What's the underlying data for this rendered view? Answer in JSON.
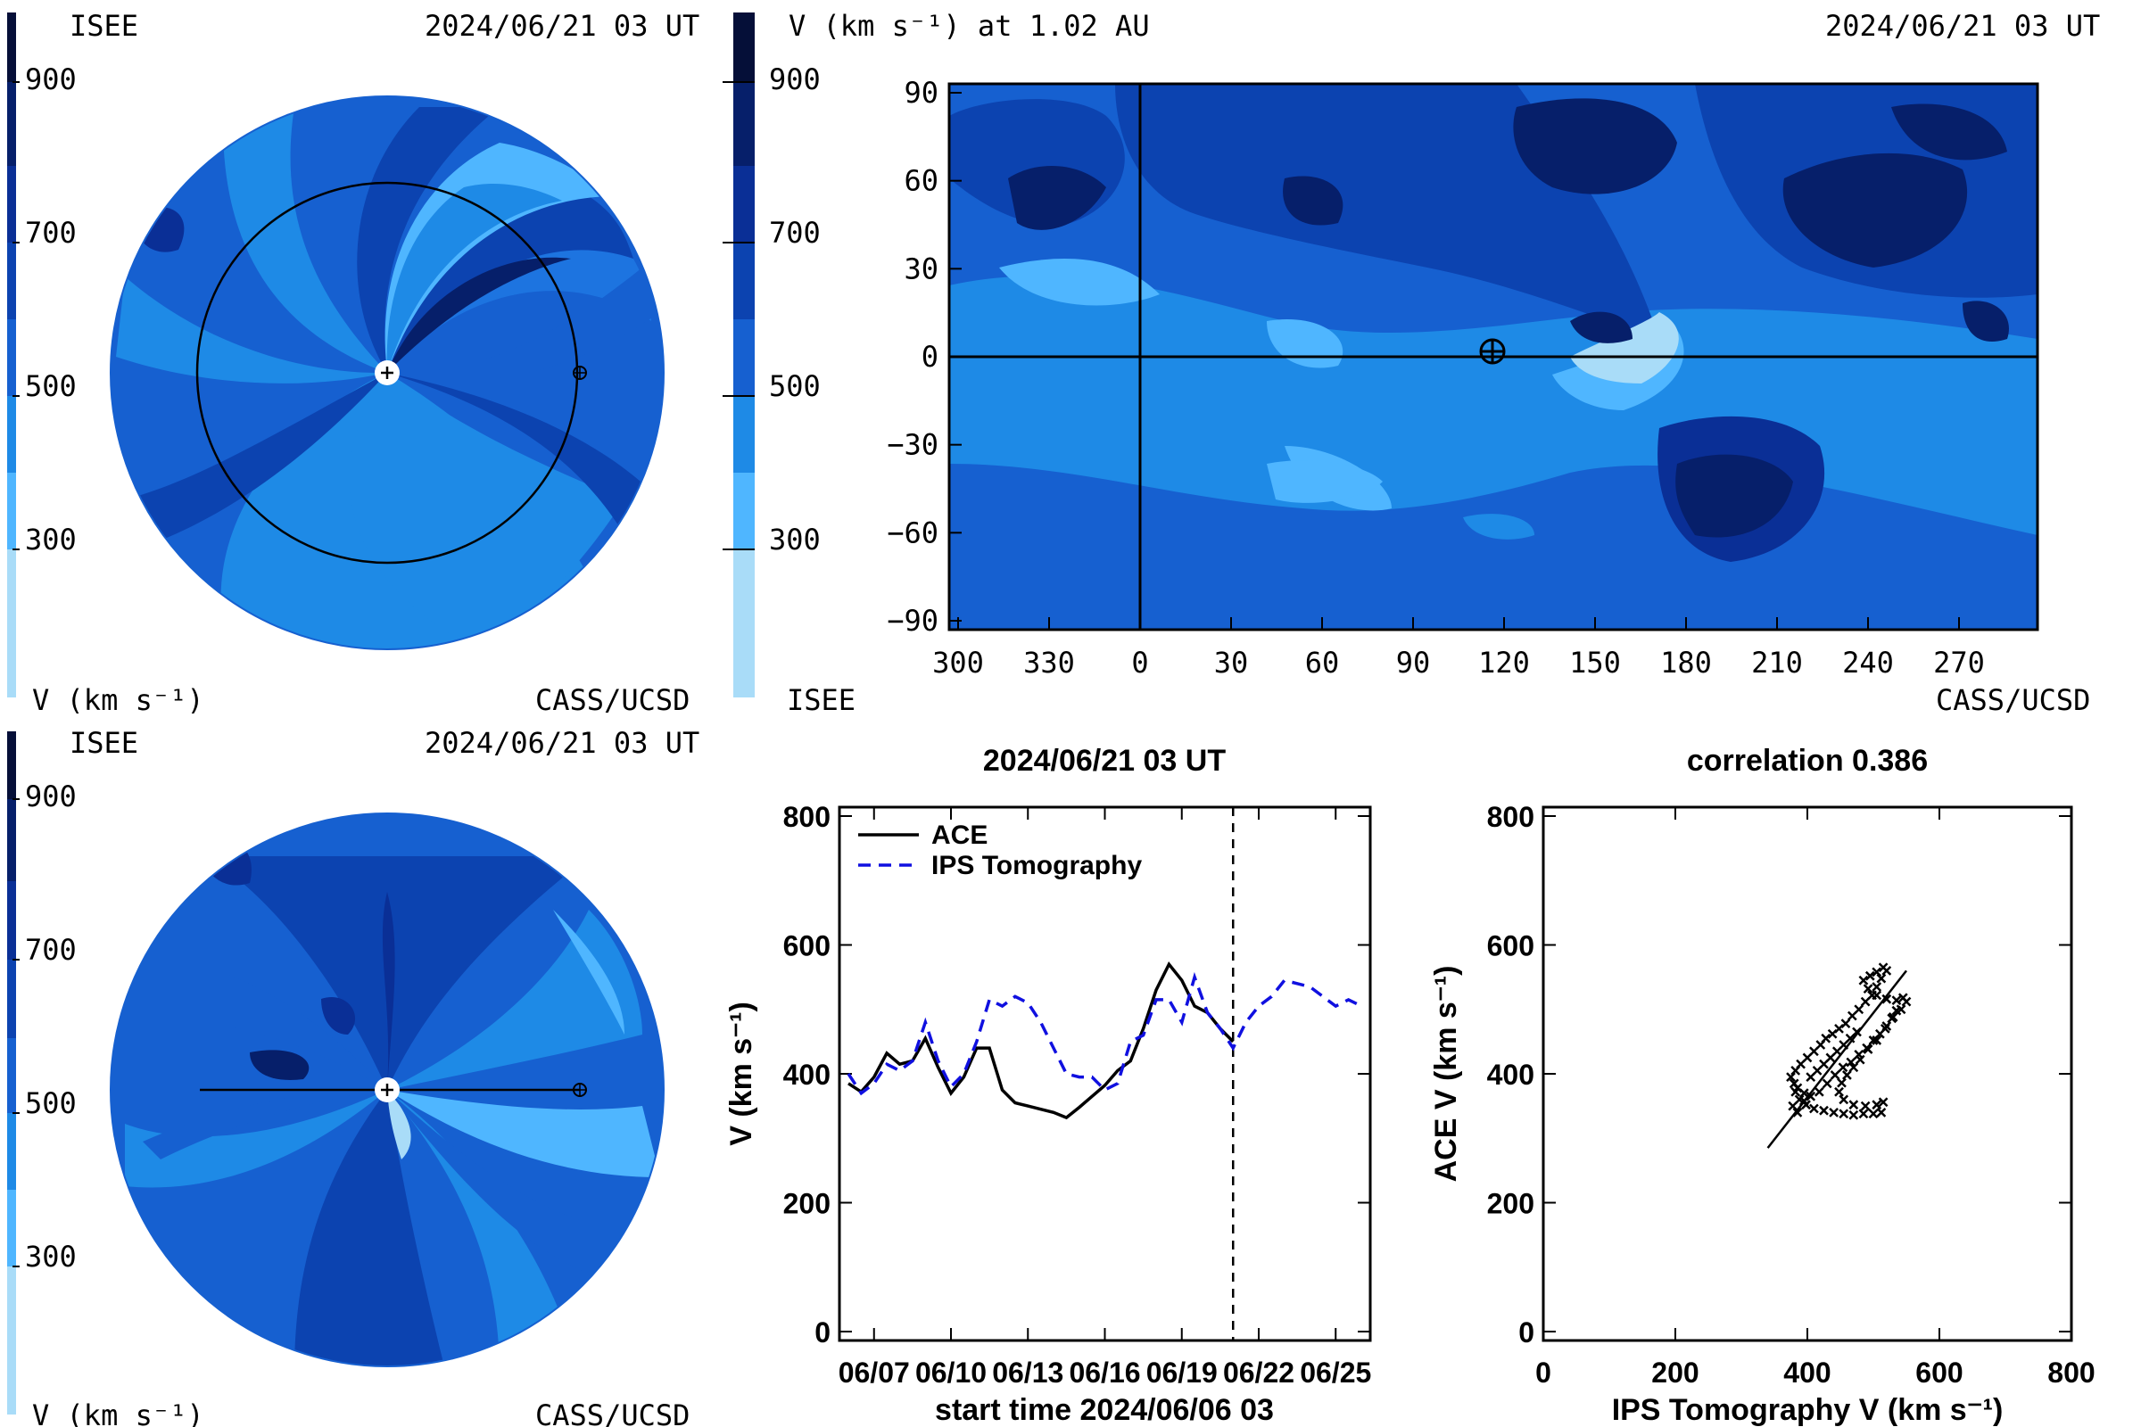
{
  "colors": {
    "v200": "#a9dcf8",
    "v300": "#4fb6ff",
    "v400": "#1e8ae6",
    "v450": "#1d74e0",
    "v500": "#1660d0",
    "v600": "#0c43b0",
    "v700": "#0a2f96",
    "v800": "#061f6a",
    "v900": "#050f38",
    "ace": "#000000",
    "ips": "#1010e0"
  },
  "colorbar": {
    "ticks": [
      "900",
      "700",
      "500",
      "300"
    ]
  },
  "panel_top_left": {
    "org": "ISEE",
    "time": "2024/06/21 03 UT",
    "unit": "V (km s⁻¹)",
    "credit": "CASS/UCSD"
  },
  "panel_bottom_left": {
    "org": "ISEE",
    "time": "2024/06/21 03 UT",
    "unit": "V (km s⁻¹)",
    "credit": "CASS/UCSD"
  },
  "panel_map": {
    "title": "V (km s⁻¹) at 1.02 AU",
    "time": "2024/06/21 03 UT",
    "org": "ISEE",
    "credit": "CASS/UCSD",
    "y_ticks": [
      "90",
      "60",
      "30",
      "0",
      "−30",
      "−60",
      "−90"
    ],
    "x_ticks": [
      "300",
      "330",
      "0",
      "30",
      "60",
      "90",
      "120",
      "150",
      "180",
      "210",
      "240",
      "270"
    ]
  },
  "chart_data": [
    {
      "type": "line",
      "title": "2024/06/21 03 UT",
      "xlabel": "start time 2024/06/06 03",
      "ylabel": "V (km s⁻¹)",
      "ylim": [
        0,
        800
      ],
      "xlim_days": [
        0,
        20
      ],
      "x_tick_labels": [
        "06/07",
        "06/10",
        "06/13",
        "06/16",
        "06/19",
        "06/22",
        "06/25"
      ],
      "y_tick_labels": [
        "0",
        "200",
        "400",
        "600",
        "800"
      ],
      "current_time_marker_day": 15,
      "legend": "top-left",
      "series": [
        {
          "name": "ACE",
          "style": "solid",
          "x": [
            0,
            0.5,
            1,
            1.5,
            2,
            2.5,
            3,
            3.5,
            4,
            4.5,
            5,
            5.5,
            6,
            6.5,
            7,
            7.5,
            8,
            8.5,
            9,
            9.5,
            10,
            10.5,
            11,
            11.5,
            12,
            12.5,
            13,
            13.5,
            14,
            14.5,
            15
          ],
          "y": [
            385,
            372,
            395,
            432,
            415,
            420,
            455,
            410,
            370,
            395,
            440,
            440,
            375,
            355,
            350,
            345,
            340,
            332,
            348,
            365,
            382,
            405,
            420,
            470,
            530,
            570,
            545,
            505,
            495,
            470,
            450
          ]
        },
        {
          "name": "IPS Tomography",
          "style": "dashed",
          "x": [
            0,
            0.5,
            1,
            1.5,
            2,
            2.5,
            3,
            3.5,
            4,
            4.5,
            5,
            5.5,
            6,
            6.5,
            7,
            7.5,
            8,
            8.5,
            9,
            9.5,
            10,
            10.5,
            11,
            11.5,
            12,
            12.5,
            13,
            13.5,
            14,
            14.5,
            15,
            15.5,
            16,
            16.5,
            17,
            17.5,
            18,
            18.5,
            19,
            19.5,
            20
          ],
          "y": [
            400,
            370,
            385,
            415,
            405,
            420,
            480,
            420,
            380,
            400,
            450,
            515,
            505,
            520,
            510,
            480,
            440,
            400,
            395,
            395,
            375,
            385,
            450,
            460,
            515,
            515,
            480,
            550,
            495,
            470,
            440,
            480,
            505,
            520,
            545,
            540,
            535,
            520,
            505,
            515,
            505
          ]
        }
      ]
    },
    {
      "type": "scatter",
      "title": "correlation 0.386",
      "xlabel": "IPS Tomography V (km s⁻¹)",
      "ylabel": "ACE V (km s⁻¹)",
      "xlim": [
        0,
        800
      ],
      "ylim": [
        0,
        800
      ],
      "x_tick_labels": [
        "0",
        "200",
        "400",
        "600",
        "800"
      ],
      "y_tick_labels": [
        "0",
        "200",
        "400",
        "600",
        "800"
      ],
      "fit_line": {
        "x": [
          340,
          550
        ],
        "y": [
          285,
          560
        ]
      },
      "points": [
        [
          375,
          395
        ],
        [
          382,
          405
        ],
        [
          390,
          415
        ],
        [
          400,
          425
        ],
        [
          410,
          435
        ],
        [
          420,
          445
        ],
        [
          428,
          455
        ],
        [
          438,
          462
        ],
        [
          448,
          470
        ],
        [
          458,
          478
        ],
        [
          468,
          490
        ],
        [
          478,
          500
        ],
        [
          488,
          512
        ],
        [
          498,
          522
        ],
        [
          505,
          535
        ],
        [
          512,
          548
        ],
        [
          520,
          560
        ],
        [
          515,
          565
        ],
        [
          505,
          558
        ],
        [
          495,
          552
        ],
        [
          485,
          545
        ],
        [
          492,
          532
        ],
        [
          505,
          522
        ],
        [
          520,
          516
        ],
        [
          535,
          514
        ],
        [
          545,
          518
        ],
        [
          550,
          512
        ],
        [
          542,
          500
        ],
        [
          530,
          488
        ],
        [
          518,
          470
        ],
        [
          505,
          452
        ],
        [
          492,
          438
        ],
        [
          480,
          422
        ],
        [
          470,
          410
        ],
        [
          460,
          398
        ],
        [
          452,
          386
        ],
        [
          448,
          372
        ],
        [
          455,
          360
        ],
        [
          470,
          352
        ],
        [
          488,
          350
        ],
        [
          505,
          352
        ],
        [
          515,
          356
        ],
        [
          512,
          340
        ],
        [
          500,
          338
        ],
        [
          485,
          338
        ],
        [
          470,
          336
        ],
        [
          455,
          338
        ],
        [
          440,
          340
        ],
        [
          425,
          343
        ],
        [
          410,
          346
        ],
        [
          398,
          352
        ],
        [
          388,
          360
        ],
        [
          382,
          372
        ],
        [
          380,
          385
        ],
        [
          385,
          378
        ],
        [
          395,
          370
        ],
        [
          405,
          365
        ],
        [
          418,
          372
        ],
        [
          430,
          385
        ],
        [
          442,
          398
        ],
        [
          454,
          410
        ],
        [
          466,
          418
        ],
        [
          478,
          430
        ],
        [
          490,
          440
        ],
        [
          500,
          452
        ],
        [
          510,
          462
        ],
        [
          520,
          474
        ],
        [
          528,
          486
        ],
        [
          535,
          498
        ],
        [
          378,
          350
        ],
        [
          385,
          340
        ],
        [
          395,
          358
        ],
        [
          405,
          395
        ],
        [
          415,
          405
        ],
        [
          425,
          415
        ],
        [
          435,
          425
        ],
        [
          445,
          435
        ],
        [
          455,
          445
        ],
        [
          465,
          455
        ],
        [
          475,
          465
        ]
      ]
    }
  ]
}
